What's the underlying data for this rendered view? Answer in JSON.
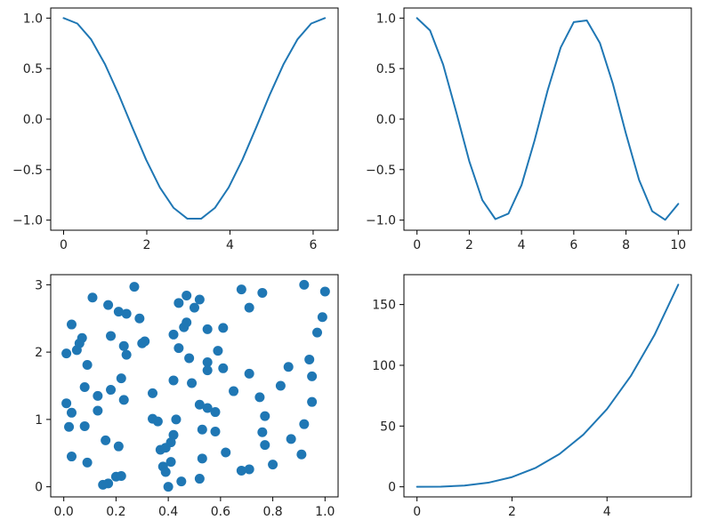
{
  "colors": {
    "series": "#1f77b4",
    "frame": "#000000",
    "background": "#ffffff"
  },
  "chart_data": [
    {
      "type": "line",
      "title": "",
      "xlabel": "",
      "ylabel": "",
      "function": "cos(x)",
      "xlim": [
        -0.31,
        6.6
      ],
      "ylim": [
        -1.1,
        1.1
      ],
      "xticks": [
        0,
        2,
        4,
        6
      ],
      "xtick_labels": [
        "0",
        "2",
        "4",
        "6"
      ],
      "yticks": [
        -1.0,
        -0.5,
        0.0,
        0.5,
        1.0
      ],
      "ytick_labels": [
        "−1.0",
        "−0.5",
        "0.0",
        "0.5",
        "1.0"
      ],
      "x": [
        0,
        0.3307,
        0.6614,
        0.9921,
        1.3228,
        1.6535,
        1.9842,
        2.3149,
        2.6456,
        2.9763,
        3.307,
        3.6377,
        3.9684,
        4.2991,
        4.6298,
        4.9605,
        5.2912,
        5.6219,
        5.9526,
        6.2833
      ],
      "y": [
        1.0,
        0.946,
        0.789,
        0.546,
        0.245,
        -0.083,
        -0.402,
        -0.677,
        -0.879,
        -0.986,
        -0.986,
        -0.879,
        -0.677,
        -0.402,
        -0.083,
        0.245,
        0.546,
        0.789,
        0.946,
        1.0
      ]
    },
    {
      "type": "line",
      "title": "",
      "xlabel": "",
      "ylabel": "",
      "function": "cos(x)",
      "xlim": [
        -0.5,
        10.5
      ],
      "ylim": [
        -1.1,
        1.1
      ],
      "xticks": [
        0,
        2,
        4,
        6,
        8,
        10
      ],
      "xtick_labels": [
        "0",
        "2",
        "4",
        "6",
        "8",
        "10"
      ],
      "yticks": [
        -1.0,
        -0.5,
        0.0,
        0.5,
        1.0
      ],
      "ytick_labels": [
        "−1.0",
        "−0.5",
        "0.0",
        "0.5",
        "1.0"
      ],
      "x": [
        0,
        0.5,
        1.0,
        1.5,
        2.0,
        2.5,
        3.0,
        3.5,
        4.0,
        4.5,
        5.0,
        5.5,
        6.0,
        6.5,
        7.0,
        7.5,
        8.0,
        8.5,
        9.0,
        9.5,
        10.0
      ],
      "y": [
        1.0,
        0.878,
        0.54,
        0.071,
        -0.416,
        -0.801,
        -0.99,
        -0.936,
        -0.654,
        -0.211,
        0.284,
        0.709,
        0.96,
        0.977,
        0.754,
        0.347,
        -0.146,
        -0.602,
        -0.911,
        -0.997,
        -0.839
      ]
    },
    {
      "type": "scatter",
      "title": "",
      "xlabel": "",
      "ylabel": "",
      "xlim": [
        -0.05,
        1.05
      ],
      "ylim": [
        -0.15,
        3.15
      ],
      "xticks": [
        0.0,
        0.2,
        0.4,
        0.6,
        0.8,
        1.0
      ],
      "xtick_labels": [
        "0.0",
        "0.2",
        "0.4",
        "0.6",
        "0.8",
        "1.0"
      ],
      "yticks": [
        0,
        1,
        2,
        3
      ],
      "ytick_labels": [
        "0",
        "1",
        "2",
        "3"
      ],
      "points": [
        [
          0.27,
          2.97
        ],
        [
          0.92,
          3.0
        ],
        [
          1.0,
          2.9
        ],
        [
          0.68,
          2.93
        ],
        [
          0.76,
          2.88
        ],
        [
          0.11,
          2.81
        ],
        [
          0.47,
          2.84
        ],
        [
          0.52,
          2.78
        ],
        [
          0.17,
          2.7
        ],
        [
          0.44,
          2.73
        ],
        [
          0.5,
          2.66
        ],
        [
          0.71,
          2.66
        ],
        [
          0.21,
          2.6
        ],
        [
          0.24,
          2.57
        ],
        [
          0.29,
          2.5
        ],
        [
          0.47,
          2.44
        ],
        [
          0.99,
          2.52
        ],
        [
          0.03,
          2.41
        ],
        [
          0.46,
          2.37
        ],
        [
          0.55,
          2.34
        ],
        [
          0.61,
          2.36
        ],
        [
          0.97,
          2.29
        ],
        [
          0.07,
          2.21
        ],
        [
          0.18,
          2.24
        ],
        [
          0.42,
          2.26
        ],
        [
          0.06,
          2.13
        ],
        [
          0.31,
          2.16
        ],
        [
          0.3,
          2.13
        ],
        [
          0.23,
          2.09
        ],
        [
          0.44,
          2.06
        ],
        [
          0.59,
          2.02
        ],
        [
          0.05,
          2.03
        ],
        [
          0.01,
          1.98
        ],
        [
          0.24,
          1.96
        ],
        [
          0.48,
          1.91
        ],
        [
          0.09,
          1.81
        ],
        [
          0.55,
          1.85
        ],
        [
          0.86,
          1.78
        ],
        [
          0.94,
          1.89
        ],
        [
          0.61,
          1.76
        ],
        [
          0.55,
          1.73
        ],
        [
          0.95,
          1.64
        ],
        [
          0.71,
          1.68
        ],
        [
          0.22,
          1.61
        ],
        [
          0.42,
          1.58
        ],
        [
          0.49,
          1.54
        ],
        [
          0.83,
          1.5
        ],
        [
          0.08,
          1.48
        ],
        [
          0.18,
          1.44
        ],
        [
          0.65,
          1.42
        ],
        [
          0.34,
          1.39
        ],
        [
          0.13,
          1.35
        ],
        [
          0.75,
          1.33
        ],
        [
          0.23,
          1.29
        ],
        [
          0.01,
          1.24
        ],
        [
          0.52,
          1.22
        ],
        [
          0.95,
          1.26
        ],
        [
          0.13,
          1.13
        ],
        [
          0.55,
          1.17
        ],
        [
          0.58,
          1.11
        ],
        [
          0.03,
          1.1
        ],
        [
          0.77,
          1.05
        ],
        [
          0.34,
          1.01
        ],
        [
          0.36,
          0.97
        ],
        [
          0.43,
          1.0
        ],
        [
          0.92,
          0.93
        ],
        [
          0.02,
          0.89
        ],
        [
          0.08,
          0.9
        ],
        [
          0.53,
          0.85
        ],
        [
          0.58,
          0.82
        ],
        [
          0.76,
          0.81
        ],
        [
          0.42,
          0.77
        ],
        [
          0.16,
          0.69
        ],
        [
          0.41,
          0.66
        ],
        [
          0.87,
          0.71
        ],
        [
          0.77,
          0.62
        ],
        [
          0.21,
          0.6
        ],
        [
          0.37,
          0.55
        ],
        [
          0.39,
          0.58
        ],
        [
          0.62,
          0.51
        ],
        [
          0.91,
          0.48
        ],
        [
          0.03,
          0.45
        ],
        [
          0.53,
          0.42
        ],
        [
          0.09,
          0.36
        ],
        [
          0.38,
          0.3
        ],
        [
          0.41,
          0.37
        ],
        [
          0.8,
          0.33
        ],
        [
          0.68,
          0.24
        ],
        [
          0.39,
          0.22
        ],
        [
          0.71,
          0.26
        ],
        [
          0.2,
          0.15
        ],
        [
          0.22,
          0.16
        ],
        [
          0.45,
          0.08
        ],
        [
          0.52,
          0.12
        ],
        [
          0.17,
          0.05
        ],
        [
          0.15,
          0.03
        ],
        [
          0.4,
          0.0
        ]
      ]
    },
    {
      "type": "line",
      "title": "",
      "xlabel": "",
      "ylabel": "",
      "function": "x^3",
      "xlim": [
        -0.275,
        5.775
      ],
      "ylim": [
        -8.3,
        174.6
      ],
      "xticks": [
        0,
        2,
        4
      ],
      "xtick_labels": [
        "0",
        "2",
        "4"
      ],
      "yticks": [
        0,
        50,
        100,
        150
      ],
      "ytick_labels": [
        "0",
        "50",
        "100",
        "150"
      ],
      "x": [
        0,
        0.5,
        1.0,
        1.5,
        2.0,
        2.5,
        3.0,
        3.5,
        4.0,
        4.5,
        5.0,
        5.5
      ],
      "y": [
        0,
        0.125,
        1.0,
        3.375,
        8.0,
        15.625,
        27.0,
        42.875,
        64.0,
        91.125,
        125.0,
        166.375
      ]
    }
  ]
}
